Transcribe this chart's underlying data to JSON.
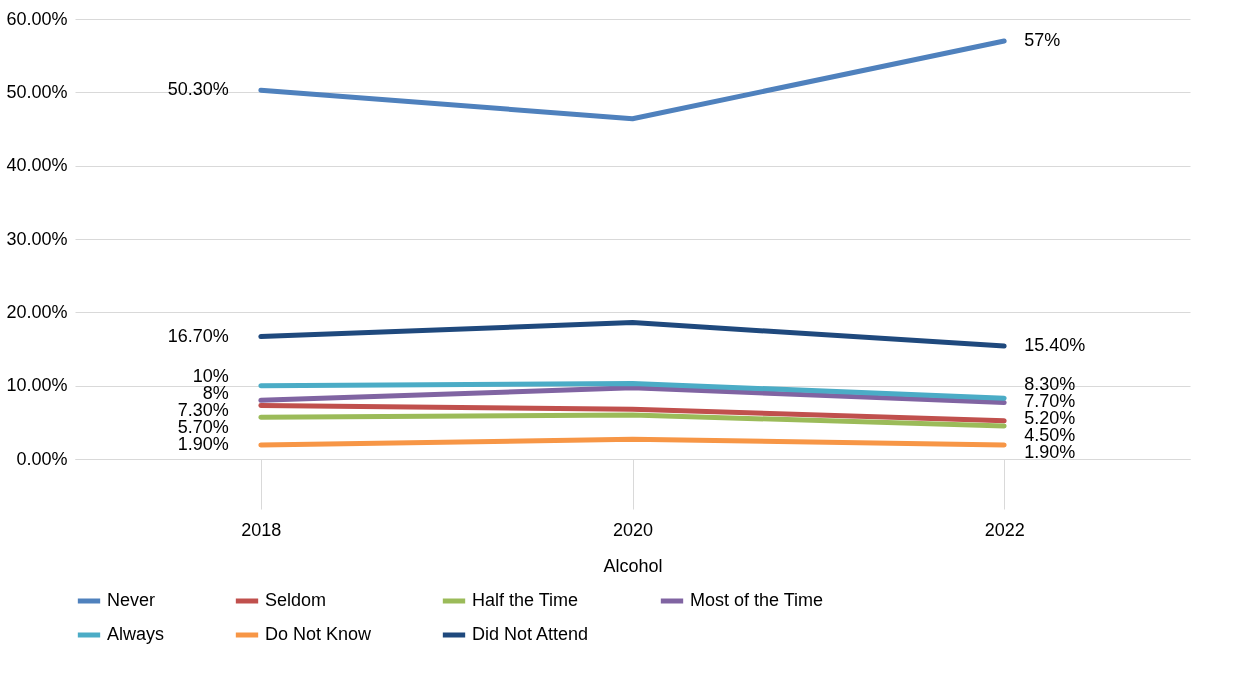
{
  "chart_data": {
    "type": "line",
    "xlabel": "Alcohol",
    "categories": [
      "2018",
      "2020",
      "2022"
    ],
    "ylim": [
      0,
      60
    ],
    "yticks": [
      {
        "value": 0,
        "label": "0.00%"
      },
      {
        "value": 10,
        "label": "10.00%"
      },
      {
        "value": 20,
        "label": "20.00%"
      },
      {
        "value": 30,
        "label": "30.00%"
      },
      {
        "value": 40,
        "label": "40.00%"
      },
      {
        "value": 50,
        "label": "50.00%"
      },
      {
        "value": 60,
        "label": "60.00%"
      }
    ],
    "grid": "y",
    "legend": "bottom",
    "marker": "none",
    "line_style": "solid",
    "series": [
      {
        "name": "Never",
        "color": "#4f81bd",
        "values": [
          50.3,
          46.4,
          57
        ],
        "value_labels": [
          "50.30%",
          null,
          "57%"
        ]
      },
      {
        "name": "Seldom",
        "color": "#c0504d",
        "values": [
          7.3,
          6.8,
          5.2
        ],
        "value_labels": [
          "7.30%",
          null,
          "5.20%"
        ]
      },
      {
        "name": "Half the Time",
        "color": "#9bbb59",
        "values": [
          5.7,
          6.0,
          4.5
        ],
        "value_labels": [
          "5.70%",
          null,
          "4.50%"
        ]
      },
      {
        "name": "Most of the Time",
        "color": "#8064a2",
        "values": [
          8,
          9.7,
          7.7
        ],
        "value_labels": [
          "8%",
          null,
          "7.70%"
        ]
      },
      {
        "name": "Always",
        "color": "#4bacc6",
        "values": [
          10,
          10.3,
          8.3
        ],
        "value_labels": [
          "10%",
          null,
          "8.30%"
        ]
      },
      {
        "name": "Do Not Know",
        "color": "#f79646",
        "values": [
          1.9,
          2.7,
          1.9
        ],
        "value_labels": [
          "1.90%",
          null,
          "1.90%"
        ]
      },
      {
        "name": "Did Not Attend",
        "color": "#1f497d",
        "values": [
          16.7,
          18.6,
          15.4
        ],
        "value_labels": [
          "16.70%",
          null,
          "15.40%"
        ]
      }
    ]
  }
}
